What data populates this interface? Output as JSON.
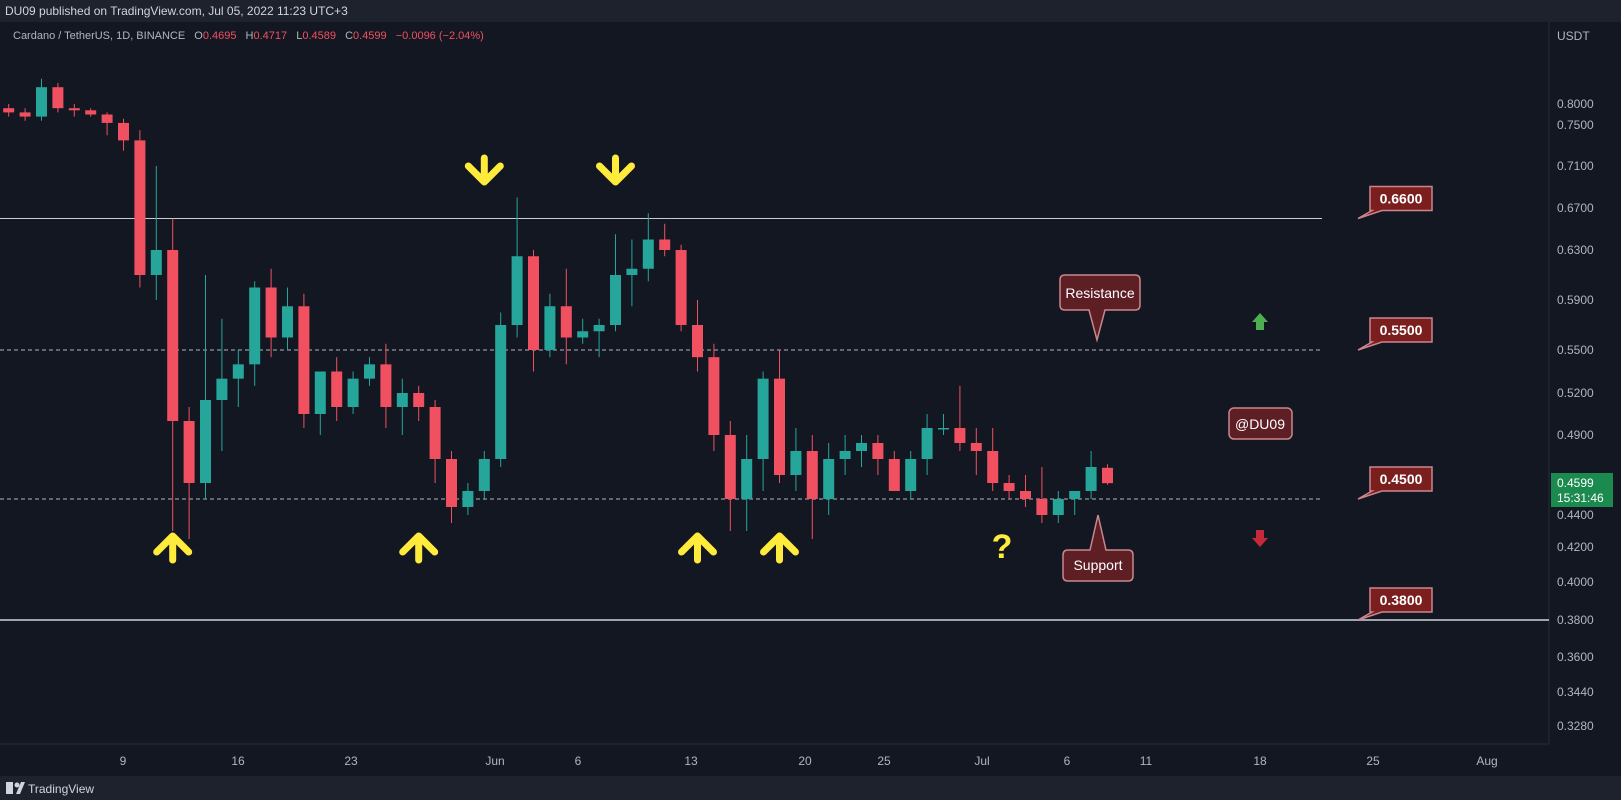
{
  "header": {
    "published": "DU09 published on TradingView.com, Jul 05, 2022 11:23 UTC+3",
    "symbol": "Cardano / TetherUS, 1D, BINANCE",
    "ohlc": {
      "o_label": "O",
      "o_value": "0.4695",
      "h_label": "H",
      "h_value": "0.4717",
      "l_label": "L",
      "l_value": "0.4589",
      "c_label": "C",
      "c_value": "0.4599",
      "change": "−0.0096 (−2.04%)"
    }
  },
  "footer": {
    "brand": "TradingView"
  },
  "colors": {
    "up": "#26a69a",
    "down": "#f05060",
    "level_box": "#7a1e1e",
    "arrow_yellow": "#ffeb3b"
  },
  "chart_data": {
    "type": "candlestick",
    "currency": "USDT",
    "y_ticks": [
      "0.8000",
      "0.7500",
      "0.7100",
      "0.6700",
      "0.6300",
      "0.5900",
      "0.5500",
      "0.5200",
      "0.4900",
      "0.4400",
      "0.4200",
      "0.4000",
      "0.3800",
      "0.3600",
      "0.3440",
      "0.3280"
    ],
    "x_ticks": [
      "9",
      "16",
      "23",
      "Jun",
      "6",
      "13",
      "20",
      "25",
      "Jul",
      "6",
      "11",
      "18",
      "25",
      "Aug"
    ],
    "levels": [
      {
        "label": "0.6600",
        "value": 0.66,
        "style": "solid"
      },
      {
        "label": "0.5500",
        "value": 0.55,
        "style": "dashed"
      },
      {
        "label": "0.4500",
        "value": 0.45,
        "style": "dashed"
      },
      {
        "label": "0.3800",
        "value": 0.38,
        "style": "solid"
      }
    ],
    "annotations": [
      "Resistance",
      "Support",
      "@DU09",
      "?"
    ],
    "last_price": {
      "price": "0.4599",
      "countdown": "15:31:46"
    },
    "arrows": [
      {
        "date": "2022-05-12",
        "dir": "up"
      },
      {
        "date": "2022-05-27",
        "dir": "up"
      },
      {
        "date": "2022-05-31",
        "dir": "down"
      },
      {
        "date": "2022-06-08",
        "dir": "down"
      },
      {
        "date": "2022-06-13",
        "dir": "up"
      },
      {
        "date": "2022-06-18",
        "dir": "up"
      }
    ],
    "candles": [
      {
        "d": "2022-05-02",
        "o": 0.79,
        "h": 0.8,
        "l": 0.77,
        "c": 0.78
      },
      {
        "d": "2022-05-03",
        "o": 0.78,
        "h": 0.79,
        "l": 0.76,
        "c": 0.77
      },
      {
        "d": "2022-05-04",
        "o": 0.77,
        "h": 0.86,
        "l": 0.76,
        "c": 0.84
      },
      {
        "d": "2022-05-05",
        "o": 0.84,
        "h": 0.85,
        "l": 0.78,
        "c": 0.79
      },
      {
        "d": "2022-05-06",
        "o": 0.79,
        "h": 0.8,
        "l": 0.77,
        "c": 0.785
      },
      {
        "d": "2022-05-07",
        "o": 0.785,
        "h": 0.79,
        "l": 0.77,
        "c": 0.775
      },
      {
        "d": "2022-05-08",
        "o": 0.775,
        "h": 0.78,
        "l": 0.74,
        "c": 0.755
      },
      {
        "d": "2022-05-09",
        "o": 0.755,
        "h": 0.765,
        "l": 0.725,
        "c": 0.735
      },
      {
        "d": "2022-05-10",
        "o": 0.735,
        "h": 0.745,
        "l": 0.6,
        "c": 0.61
      },
      {
        "d": "2022-05-11",
        "o": 0.61,
        "h": 0.71,
        "l": 0.59,
        "c": 0.63
      },
      {
        "d": "2022-05-12",
        "o": 0.63,
        "h": 0.66,
        "l": 0.43,
        "c": 0.5
      },
      {
        "d": "2022-05-13",
        "o": 0.5,
        "h": 0.51,
        "l": 0.425,
        "c": 0.46
      },
      {
        "d": "2022-05-14",
        "o": 0.46,
        "h": 0.61,
        "l": 0.45,
        "c": 0.515
      },
      {
        "d": "2022-05-15",
        "o": 0.515,
        "h": 0.575,
        "l": 0.48,
        "c": 0.53
      },
      {
        "d": "2022-05-16",
        "o": 0.53,
        "h": 0.55,
        "l": 0.51,
        "c": 0.54
      },
      {
        "d": "2022-05-17",
        "o": 0.54,
        "h": 0.605,
        "l": 0.525,
        "c": 0.6
      },
      {
        "d": "2022-05-18",
        "o": 0.6,
        "h": 0.615,
        "l": 0.545,
        "c": 0.56
      },
      {
        "d": "2022-05-19",
        "o": 0.56,
        "h": 0.6,
        "l": 0.55,
        "c": 0.585
      },
      {
        "d": "2022-05-20",
        "o": 0.585,
        "h": 0.595,
        "l": 0.495,
        "c": 0.505
      },
      {
        "d": "2022-05-21",
        "o": 0.505,
        "h": 0.535,
        "l": 0.49,
        "c": 0.535
      },
      {
        "d": "2022-05-22",
        "o": 0.535,
        "h": 0.545,
        "l": 0.5,
        "c": 0.51
      },
      {
        "d": "2022-05-23",
        "o": 0.51,
        "h": 0.535,
        "l": 0.505,
        "c": 0.53
      },
      {
        "d": "2022-05-24",
        "o": 0.53,
        "h": 0.545,
        "l": 0.525,
        "c": 0.54
      },
      {
        "d": "2022-05-25",
        "o": 0.54,
        "h": 0.555,
        "l": 0.495,
        "c": 0.51
      },
      {
        "d": "2022-05-26",
        "o": 0.51,
        "h": 0.53,
        "l": 0.49,
        "c": 0.52
      },
      {
        "d": "2022-05-27",
        "o": 0.52,
        "h": 0.525,
        "l": 0.5,
        "c": 0.51
      },
      {
        "d": "2022-05-28",
        "o": 0.51,
        "h": 0.515,
        "l": 0.46,
        "c": 0.475
      },
      {
        "d": "2022-05-29",
        "o": 0.475,
        "h": 0.48,
        "l": 0.435,
        "c": 0.445
      },
      {
        "d": "2022-05-30",
        "o": 0.445,
        "h": 0.46,
        "l": 0.44,
        "c": 0.455
      },
      {
        "d": "2022-05-31",
        "o": 0.455,
        "h": 0.48,
        "l": 0.45,
        "c": 0.475
      },
      {
        "d": "2022-06-01",
        "o": 0.475,
        "h": 0.58,
        "l": 0.47,
        "c": 0.57
      },
      {
        "d": "2022-06-02",
        "o": 0.57,
        "h": 0.68,
        "l": 0.56,
        "c": 0.625
      },
      {
        "d": "2022-06-03",
        "o": 0.625,
        "h": 0.63,
        "l": 0.535,
        "c": 0.55
      },
      {
        "d": "2022-06-04",
        "o": 0.55,
        "h": 0.595,
        "l": 0.545,
        "c": 0.585
      },
      {
        "d": "2022-06-05",
        "o": 0.585,
        "h": 0.615,
        "l": 0.54,
        "c": 0.56
      },
      {
        "d": "2022-06-06",
        "o": 0.56,
        "h": 0.575,
        "l": 0.555,
        "c": 0.565
      },
      {
        "d": "2022-06-07",
        "o": 0.565,
        "h": 0.575,
        "l": 0.545,
        "c": 0.57
      },
      {
        "d": "2022-06-08",
        "o": 0.57,
        "h": 0.645,
        "l": 0.565,
        "c": 0.61
      },
      {
        "d": "2022-06-09",
        "o": 0.61,
        "h": 0.64,
        "l": 0.585,
        "c": 0.615
      },
      {
        "d": "2022-06-10",
        "o": 0.615,
        "h": 0.665,
        "l": 0.605,
        "c": 0.64
      },
      {
        "d": "2022-06-11",
        "o": 0.64,
        "h": 0.655,
        "l": 0.625,
        "c": 0.63
      },
      {
        "d": "2022-06-12",
        "o": 0.63,
        "h": 0.635,
        "l": 0.565,
        "c": 0.57
      },
      {
        "d": "2022-06-13",
        "o": 0.57,
        "h": 0.59,
        "l": 0.535,
        "c": 0.545
      },
      {
        "d": "2022-06-14",
        "o": 0.545,
        "h": 0.555,
        "l": 0.48,
        "c": 0.49
      },
      {
        "d": "2022-06-15",
        "o": 0.49,
        "h": 0.5,
        "l": 0.43,
        "c": 0.45
      },
      {
        "d": "2022-06-16",
        "o": 0.45,
        "h": 0.49,
        "l": 0.43,
        "c": 0.475
      },
      {
        "d": "2022-06-17",
        "o": 0.475,
        "h": 0.535,
        "l": 0.455,
        "c": 0.53
      },
      {
        "d": "2022-06-18",
        "o": 0.53,
        "h": 0.55,
        "l": 0.46,
        "c": 0.465
      },
      {
        "d": "2022-06-19",
        "o": 0.465,
        "h": 0.495,
        "l": 0.455,
        "c": 0.48
      },
      {
        "d": "2022-06-20",
        "o": 0.48,
        "h": 0.49,
        "l": 0.425,
        "c": 0.45
      },
      {
        "d": "2022-06-21",
        "o": 0.45,
        "h": 0.485,
        "l": 0.44,
        "c": 0.475
      },
      {
        "d": "2022-06-22",
        "o": 0.475,
        "h": 0.49,
        "l": 0.465,
        "c": 0.48
      },
      {
        "d": "2022-06-23",
        "o": 0.48,
        "h": 0.49,
        "l": 0.47,
        "c": 0.485
      },
      {
        "d": "2022-06-24",
        "o": 0.485,
        "h": 0.49,
        "l": 0.465,
        "c": 0.475
      },
      {
        "d": "2022-06-25",
        "o": 0.475,
        "h": 0.48,
        "l": 0.455,
        "c": 0.455
      },
      {
        "d": "2022-06-26",
        "o": 0.455,
        "h": 0.48,
        "l": 0.45,
        "c": 0.475
      },
      {
        "d": "2022-06-27",
        "o": 0.475,
        "h": 0.505,
        "l": 0.465,
        "c": 0.495
      },
      {
        "d": "2022-06-28",
        "o": 0.495,
        "h": 0.505,
        "l": 0.49,
        "c": 0.495
      },
      {
        "d": "2022-06-29",
        "o": 0.495,
        "h": 0.525,
        "l": 0.48,
        "c": 0.485
      },
      {
        "d": "2022-06-30",
        "o": 0.485,
        "h": 0.495,
        "l": 0.465,
        "c": 0.48
      },
      {
        "d": "2022-07-01",
        "o": 0.48,
        "h": 0.495,
        "l": 0.455,
        "c": 0.46
      },
      {
        "d": "2022-07-02",
        "o": 0.46,
        "h": 0.465,
        "l": 0.45,
        "c": 0.455
      },
      {
        "d": "2022-07-03",
        "o": 0.455,
        "h": 0.465,
        "l": 0.445,
        "c": 0.45
      },
      {
        "d": "2022-07-04",
        "o": 0.45,
        "h": 0.47,
        "l": 0.435,
        "c": 0.44
      },
      {
        "d": "2022-07-05",
        "o": 0.44,
        "h": 0.455,
        "l": 0.435,
        "c": 0.45
      },
      {
        "d": "2022-07-06",
        "o": 0.45,
        "h": 0.455,
        "l": 0.44,
        "c": 0.455
      },
      {
        "d": "2022-07-07",
        "o": 0.455,
        "h": 0.48,
        "l": 0.45,
        "c": 0.47
      },
      {
        "d": "2022-07-08",
        "o": 0.4695,
        "h": 0.4717,
        "l": 0.4589,
        "c": 0.4599
      }
    ]
  }
}
